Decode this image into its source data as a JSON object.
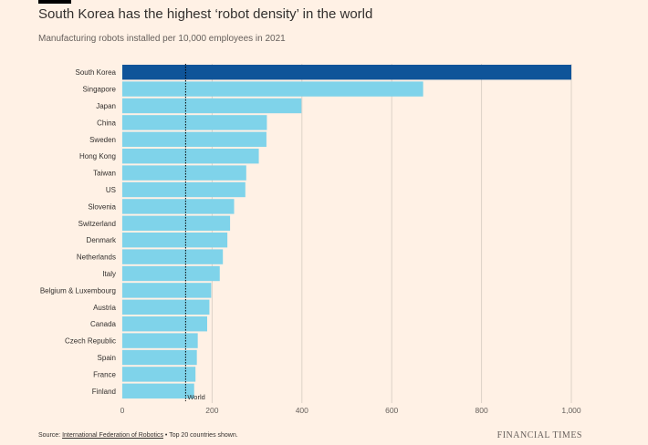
{
  "header": {
    "title": "South Korea has the highest ‘robot density’ in the world",
    "subtitle": "Manufacturing robots installed per 10,000 employees in 2021"
  },
  "footer": {
    "source_prefix": "Source: ",
    "source_link": "International Federation of Robotics",
    "source_suffix": " • Top 20 countries shown.",
    "publisher": "FINANCIAL TIMES"
  },
  "colors": {
    "background": "#fff1e5",
    "highlight_bar": "#0f5499",
    "bar": "#7fd3ea",
    "grid": "#ddd2c7",
    "reference_line": "#000000"
  },
  "chart_data": {
    "type": "bar",
    "orientation": "horizontal",
    "title": "South Korea has the highest ‘robot density’ in the world",
    "subtitle": "Manufacturing robots installed per 10,000 employees in 2021",
    "xlabel": "",
    "ylabel": "",
    "xlim": [
      0,
      1000
    ],
    "xticks": [
      0,
      200,
      400,
      600,
      800,
      1000
    ],
    "xtick_labels": [
      "0",
      "200",
      "400",
      "600",
      "800",
      "1,000"
    ],
    "grid": true,
    "categories": [
      "South Korea",
      "Singapore",
      "Japan",
      "China",
      "Sweden",
      "Hong Kong",
      "Taiwan",
      "US",
      "Slovenia",
      "Switzerland",
      "Denmark",
      "Netherlands",
      "Italy",
      "Belgium & Luxembourg",
      "Austria",
      "Canada",
      "Czech Republic",
      "Spain",
      "France",
      "Finland"
    ],
    "values": [
      1000,
      670,
      399,
      322,
      321,
      304,
      276,
      274,
      249,
      240,
      234,
      224,
      217,
      198,
      194,
      189,
      168,
      166,
      163,
      160
    ],
    "highlight": "South Korea",
    "reference": {
      "label": "World",
      "value": 141
    }
  }
}
